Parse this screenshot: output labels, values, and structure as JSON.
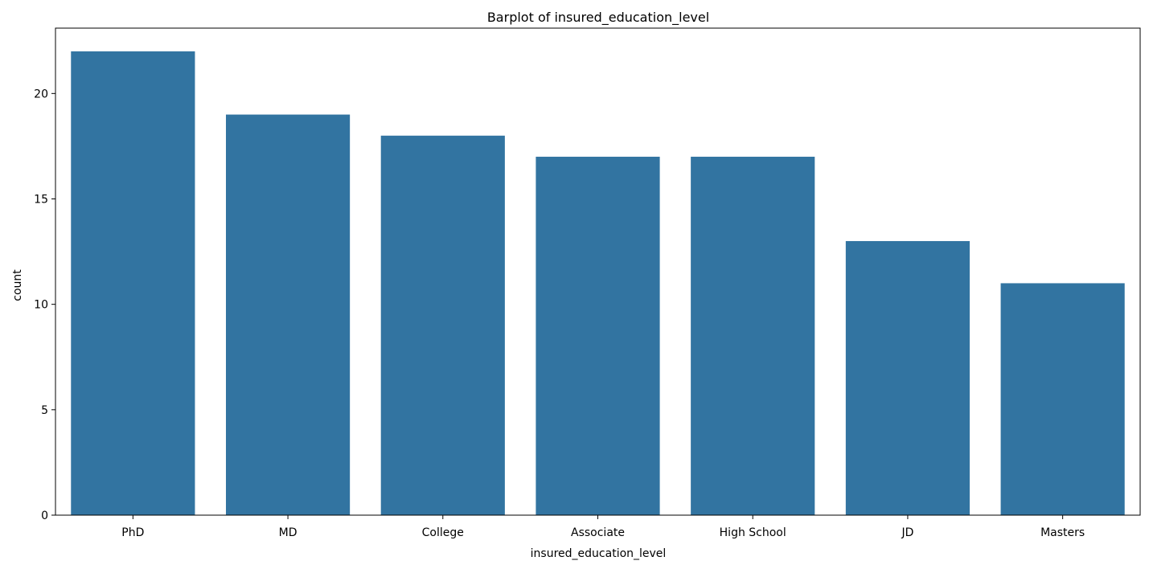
{
  "chart_data": {
    "type": "bar",
    "title": "Barplot of insured_education_level",
    "xlabel": "insured_education_level",
    "ylabel": "count",
    "categories": [
      "PhD",
      "MD",
      "College",
      "Associate",
      "High School",
      "JD",
      "Masters"
    ],
    "values": [
      22,
      19,
      18,
      17,
      17,
      13,
      11
    ],
    "ylim": [
      0,
      23.1
    ],
    "yticks": [
      0,
      5,
      10,
      15,
      20
    ],
    "bar_color": "#3274a1",
    "grid": false,
    "legend": "none"
  }
}
